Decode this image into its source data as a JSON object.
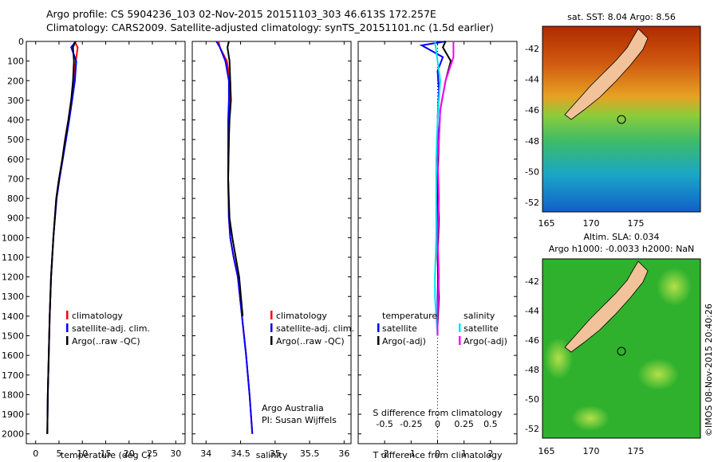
{
  "header": {
    "line1": "Argo profile: CS 5904236_103 02-Nov-2015 20151103_303 46.613S 172.257E",
    "line2": "Climatology: CARS2009. Satellite-adjusted climatology: synTS_20151101.nc (1.5d earlier)"
  },
  "colors": {
    "climatology": "#ff0000",
    "satellite": "#0000ff",
    "argo": "#000000",
    "sat_salinity": "#00e5ee",
    "argo_salinity": "#ff00ff"
  },
  "depth_axis": {
    "ticks": [
      "0",
      "100",
      "200",
      "300",
      "400",
      "500",
      "600",
      "700",
      "800",
      "900",
      "1000",
      "1100",
      "1200",
      "1300",
      "1400",
      "1500",
      "1600",
      "1700",
      "1800",
      "1900",
      "2000"
    ],
    "range": [
      0,
      2050
    ],
    "reversed": true
  },
  "chart_data": [
    {
      "type": "line",
      "id": "temperature",
      "xlabel": "temperature (deg C)",
      "xticks": [
        "0",
        "5",
        "10",
        "15",
        "20",
        "25",
        "30"
      ],
      "xlim": [
        -2,
        32
      ],
      "legend": [
        "climatology",
        "satellite-adj. clim.",
        "Argo(..raw -QC)"
      ],
      "series": [
        {
          "name": "climatology",
          "color": "#ff0000",
          "x": [
            8.3,
            9.0,
            8.6,
            8.2,
            7.6,
            7.0,
            6.3,
            5.7,
            5.0,
            4.4,
            3.8,
            3.3,
            3.0,
            2.8,
            2.6,
            2.5
          ],
          "y": [
            0,
            30,
            100,
            200,
            300,
            400,
            500,
            600,
            700,
            800,
            1000,
            1200,
            1400,
            1600,
            1800,
            2000
          ]
        },
        {
          "name": "satellite-adj. clim.",
          "color": "#0000ff",
          "x": [
            8.6,
            7.6,
            8.7,
            8.4,
            7.8,
            7.2,
            6.5,
            5.8,
            5.1,
            4.5,
            3.8,
            3.3,
            3.0,
            2.8,
            2.6,
            2.5
          ],
          "y": [
            0,
            30,
            100,
            200,
            300,
            400,
            500,
            600,
            700,
            800,
            1000,
            1200,
            1400,
            1600,
            1800,
            2000
          ]
        },
        {
          "name": "Argo(..raw -QC)",
          "color": "#000000",
          "x": [
            8.5,
            8.0,
            8.2,
            8.0,
            7.6,
            7.0,
            6.3,
            5.7,
            5.0,
            4.4,
            3.8,
            3.3,
            3.0,
            2.8,
            2.6,
            2.5
          ],
          "y": [
            0,
            30,
            100,
            200,
            300,
            400,
            500,
            600,
            700,
            800,
            1000,
            1200,
            1400,
            1600,
            1800,
            2000
          ]
        }
      ]
    },
    {
      "type": "line",
      "id": "salinity",
      "xlabel": "salinity",
      "xticks": [
        "34",
        "34.5",
        "35",
        "35.5",
        "36"
      ],
      "xlim": [
        33.8,
        36.1
      ],
      "legend": [
        "climatology",
        "satellite-adj. clim.",
        "Argo(..raw -QC)"
      ],
      "annotation": [
        "Argo Australia",
        "PI: Susan Wijffels"
      ],
      "series": [
        {
          "name": "climatology",
          "color": "#ff0000",
          "x": [
            34.18,
            34.2,
            34.3,
            34.35,
            34.35,
            34.33,
            34.33,
            34.32,
            34.33,
            34.35,
            34.4,
            34.46,
            34.52,
            34.58,
            34.63,
            34.67
          ],
          "y": [
            0,
            30,
            100,
            200,
            300,
            400,
            500,
            700,
            900,
            1000,
            1100,
            1200,
            1400,
            1600,
            1800,
            2000
          ]
        },
        {
          "name": "satellite-adj. clim.",
          "color": "#0000ff",
          "x": [
            34.15,
            34.2,
            34.28,
            34.33,
            34.33,
            34.32,
            34.32,
            34.32,
            34.33,
            34.35,
            34.4,
            34.46,
            34.52,
            34.58,
            34.63,
            34.67
          ],
          "y": [
            0,
            30,
            100,
            200,
            300,
            400,
            500,
            700,
            900,
            1000,
            1100,
            1200,
            1400,
            1600,
            1800,
            2000
          ]
        },
        {
          "name": "Argo(..raw -QC)",
          "color": "#000000",
          "x": [
            34.33,
            34.31,
            34.34,
            34.35,
            34.36,
            34.34,
            34.33,
            34.32,
            34.34,
            34.38,
            34.43,
            34.48,
            34.53
          ],
          "y": [
            0,
            30,
            100,
            200,
            300,
            400,
            500,
            700,
            900,
            1000,
            1100,
            1200,
            1400
          ]
        }
      ]
    },
    {
      "type": "line",
      "id": "difference",
      "xlabel": "T difference from climatology",
      "xlabel2": "S difference from climatology",
      "xticks": [
        "-2",
        "-1",
        "0",
        "1",
        "2"
      ],
      "xticks_s": [
        "-0.5",
        "-0.25",
        "0",
        "0.25",
        "0.5"
      ],
      "xlim": [
        -3,
        3
      ],
      "legend_titles": [
        "temperature",
        "salinity"
      ],
      "legend": [
        "satellite",
        "Argo(-adj)",
        "satellite",
        "Argo(-adj)"
      ],
      "series": [
        {
          "name": "temperature satellite",
          "color": "#0000ff",
          "x": [
            0.3,
            -0.6,
            0.2,
            0.0,
            0.05,
            0.0,
            0.02,
            0.0,
            0.0,
            0.02,
            0.0,
            0.0,
            0.0,
            0.0
          ],
          "y": [
            0,
            20,
            80,
            150,
            250,
            400,
            600,
            800,
            1000,
            1200,
            1300,
            1400,
            1450,
            1500
          ]
        },
        {
          "name": "temperature Argo(-adj)",
          "color": "#000000",
          "x": [
            0.3,
            0.2,
            0.5,
            0.3,
            0.1,
            0.05,
            0.0,
            0.05,
            0.0,
            0.05,
            0.0,
            0.0
          ],
          "y": [
            0,
            30,
            100,
            200,
            350,
            500,
            700,
            900,
            1100,
            1300,
            1450,
            1500
          ]
        },
        {
          "name": "salinity satellite",
          "color": "#00e5ee",
          "x": [
            -0.1,
            0.0,
            0.1,
            0.0,
            -0.05,
            -0.05,
            -0.05,
            -0.1,
            -0.1,
            -0.05,
            0.0
          ],
          "y": [
            0,
            100,
            200,
            400,
            600,
            800,
            1000,
            1200,
            1300,
            1400,
            1500
          ]
        },
        {
          "name": "salinity Argo(-adj)",
          "color": "#ff00ff",
          "x": [
            0.6,
            0.6,
            0.3,
            0.1,
            0.05,
            0.0,
            0.05,
            0.0,
            0.05,
            0.0,
            0.0
          ],
          "y": [
            0,
            80,
            200,
            350,
            500,
            600,
            800,
            1000,
            1200,
            1400,
            1500
          ]
        }
      ]
    }
  ],
  "maps": {
    "sst": {
      "title": "sat. SST: 8.04 Argo: 8.56",
      "lat_ticks": [
        "-42",
        "-44",
        "-46",
        "-48",
        "-50",
        "-52"
      ],
      "lon_ticks": [
        "165",
        "170",
        "175"
      ]
    },
    "sla": {
      "title1": "Altim. SLA: 0.034",
      "title2": "Argo h1000: -0.0033 h2000: NaN",
      "lat_ticks": [
        "-42",
        "-44",
        "-46",
        "-48",
        "-50",
        "-52"
      ],
      "lon_ticks": [
        "165",
        "170",
        "175"
      ],
      "side_label": "©IMOS 08-Nov-2015 20:40:26"
    }
  }
}
